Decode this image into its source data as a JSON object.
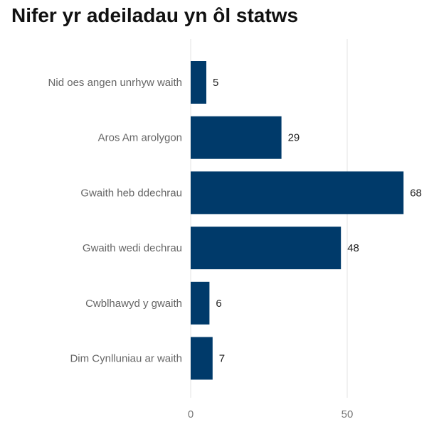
{
  "chart_data": {
    "type": "bar",
    "orientation": "horizontal",
    "title": "Nifer yr adeiladau yn ôl statws",
    "categories": [
      "Nid oes angen unrhyw waith",
      "Aros Am arolygon",
      "Gwaith heb ddechrau",
      "Gwaith wedi dechrau",
      "Cwblhawyd y gwaith",
      "Dim Cynlluniau ar waith"
    ],
    "values": [
      5,
      29,
      68,
      48,
      6,
      7
    ],
    "xlim": [
      0,
      75
    ],
    "xticks": [
      0,
      50
    ],
    "grid": true,
    "bar_color": "#003a6a",
    "xlabel": "",
    "ylabel": ""
  }
}
